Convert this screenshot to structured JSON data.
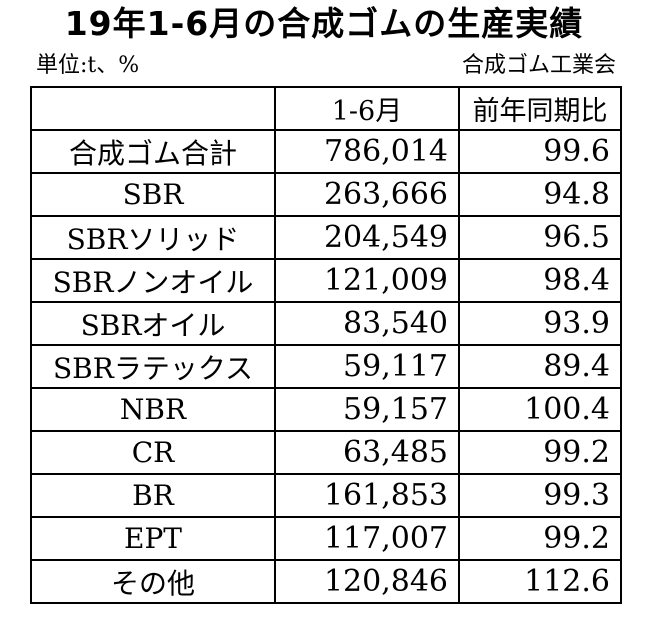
{
  "title": "19年1-6月の合成ゴムの生産実績",
  "unit_label": "単位:t、%",
  "source": "合成ゴム工業会",
  "table": {
    "headers": [
      "",
      "1-6月",
      "前年同期比"
    ],
    "rows": [
      {
        "name": "合成ゴム合計",
        "value": "786,014",
        "yoy": "99.6"
      },
      {
        "name": "SBR",
        "value": "263,666",
        "yoy": "94.8"
      },
      {
        "name": "SBRソリッド",
        "value": "204,549",
        "yoy": "96.5"
      },
      {
        "name": "SBRノンオイル",
        "value": "121,009",
        "yoy": "98.4"
      },
      {
        "name": "SBRオイル",
        "value": "83,540",
        "yoy": "93.9"
      },
      {
        "name": "SBRラテックス",
        "value": "59,117",
        "yoy": "89.4"
      },
      {
        "name": "NBR",
        "value": "59,157",
        "yoy": "100.4"
      },
      {
        "name": "CR",
        "value": "63,485",
        "yoy": "99.2"
      },
      {
        "name": "BR",
        "value": "161,853",
        "yoy": "99.3"
      },
      {
        "name": "EPT",
        "value": "117,007",
        "yoy": "99.2"
      },
      {
        "name": "その他",
        "value": "120,846",
        "yoy": "112.6"
      }
    ]
  }
}
